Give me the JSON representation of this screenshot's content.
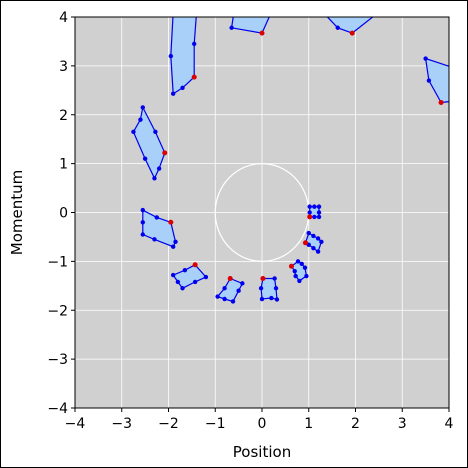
{
  "chart_data": {
    "type": "scatter",
    "title": "",
    "xlabel": "Position",
    "ylabel": "Momentum",
    "xlim": [
      -4,
      4
    ],
    "ylim": [
      -4,
      4
    ],
    "xticks": [
      -4,
      -3,
      -2,
      -1,
      0,
      1,
      2,
      3,
      4
    ],
    "yticks": [
      -4,
      -3,
      -2,
      -1,
      0,
      1,
      2,
      3,
      4
    ],
    "xtick_labels": [
      "−4",
      "−3",
      "−2",
      "−1",
      "0",
      "1",
      "2",
      "3",
      "4"
    ],
    "ytick_labels": [
      "−4",
      "−3",
      "−2",
      "−1",
      "0",
      "1",
      "2",
      "3",
      "4"
    ],
    "grid": true,
    "colors": {
      "plot_background": "#d0d0d0",
      "grid": "#ffffff",
      "circle": "#ffffff",
      "polygon_fill": "#a8d0f8",
      "polygon_edge": "#0000ee",
      "vertex": "#0000ee",
      "highlight": "#dd0000"
    },
    "reference_circle": {
      "center": [
        0,
        0
      ],
      "radius": 1
    },
    "polygons": [
      {
        "points": [
          [
            1.02,
            0.12
          ],
          [
            1.12,
            0.12
          ],
          [
            1.22,
            0.12
          ],
          [
            1.22,
            0.0
          ],
          [
            1.22,
            -0.09
          ],
          [
            1.12,
            -0.09
          ],
          [
            1.02,
            -0.09
          ],
          [
            1.02,
            0.0
          ]
        ],
        "highlight": [
          1.02,
          -0.09
        ]
      },
      {
        "points": [
          [
            0.93,
            -0.62
          ],
          [
            1.0,
            -0.42
          ],
          [
            1.1,
            -0.48
          ],
          [
            1.2,
            -0.53
          ],
          [
            1.27,
            -0.6
          ],
          [
            1.2,
            -0.8
          ],
          [
            1.1,
            -0.73
          ],
          [
            1.0,
            -0.66
          ]
        ],
        "highlight": [
          0.93,
          -0.62
        ]
      },
      {
        "points": [
          [
            0.63,
            -1.1
          ],
          [
            0.77,
            -1.0
          ],
          [
            0.85,
            -1.05
          ],
          [
            0.92,
            -1.13
          ],
          [
            0.95,
            -1.3
          ],
          [
            0.8,
            -1.4
          ],
          [
            0.72,
            -1.3
          ],
          [
            0.7,
            -1.2
          ]
        ],
        "highlight": [
          0.63,
          -1.1
        ]
      },
      {
        "points": [
          [
            0.02,
            -1.35
          ],
          [
            0.27,
            -1.35
          ],
          [
            0.3,
            -1.55
          ],
          [
            0.32,
            -1.78
          ],
          [
            0.2,
            -1.75
          ],
          [
            0.0,
            -1.77
          ],
          [
            -0.02,
            -1.55
          ]
        ],
        "highlight": [
          0.02,
          -1.35
        ]
      },
      {
        "points": [
          [
            -0.68,
            -1.35
          ],
          [
            -0.42,
            -1.45
          ],
          [
            -0.5,
            -1.6
          ],
          [
            -0.62,
            -1.82
          ],
          [
            -0.8,
            -1.77
          ],
          [
            -0.95,
            -1.72
          ],
          [
            -0.8,
            -1.55
          ]
        ],
        "highlight": [
          -0.68,
          -1.35
        ]
      },
      {
        "points": [
          [
            -1.43,
            -1.07
          ],
          [
            -1.2,
            -1.32
          ],
          [
            -1.43,
            -1.42
          ],
          [
            -1.7,
            -1.55
          ],
          [
            -1.8,
            -1.42
          ],
          [
            -1.9,
            -1.28
          ],
          [
            -1.65,
            -1.18
          ]
        ],
        "highlight": [
          -1.43,
          -1.07
        ]
      },
      {
        "points": [
          [
            -1.95,
            -0.2
          ],
          [
            -1.85,
            -0.6
          ],
          [
            -1.9,
            -0.7
          ],
          [
            -2.3,
            -0.55
          ],
          [
            -2.55,
            -0.45
          ],
          [
            -2.55,
            -0.2
          ],
          [
            -2.55,
            0.05
          ],
          [
            -2.25,
            -0.1
          ]
        ],
        "highlight": [
          -1.95,
          -0.2
        ]
      },
      {
        "points": [
          [
            -2.08,
            1.22
          ],
          [
            -2.2,
            0.9
          ],
          [
            -2.3,
            0.7
          ],
          [
            -2.5,
            1.1
          ],
          [
            -2.75,
            1.65
          ],
          [
            -2.6,
            1.9
          ],
          [
            -2.55,
            2.15
          ],
          [
            -2.28,
            1.65
          ]
        ],
        "highlight": [
          -2.08,
          1.22
        ]
      },
      {
        "points": [
          [
            -1.45,
            2.77
          ],
          [
            -1.45,
            3.45
          ],
          [
            -1.4,
            4.1
          ],
          [
            -1.9,
            4.1
          ],
          [
            -1.95,
            3.2
          ],
          [
            -1.9,
            2.43
          ],
          [
            -1.7,
            2.55
          ]
        ],
        "highlight": [
          -1.45,
          2.77
        ]
      },
      {
        "points": [
          [
            0.0,
            3.67
          ],
          [
            0.2,
            4.1
          ],
          [
            -0.6,
            4.1
          ],
          [
            -0.65,
            3.78
          ]
        ],
        "highlight": [
          0.0,
          3.67
        ]
      },
      {
        "points": [
          [
            1.93,
            3.67
          ],
          [
            2.5,
            4.1
          ],
          [
            1.3,
            4.1
          ],
          [
            1.62,
            3.78
          ]
        ],
        "highlight": [
          1.93,
          3.67
        ]
      },
      {
        "points": [
          [
            3.83,
            2.25
          ],
          [
            4.3,
            2.3
          ],
          [
            4.3,
            2.9
          ],
          [
            3.5,
            3.15
          ],
          [
            3.57,
            2.7
          ]
        ],
        "highlight": [
          3.83,
          2.25
        ]
      }
    ]
  }
}
